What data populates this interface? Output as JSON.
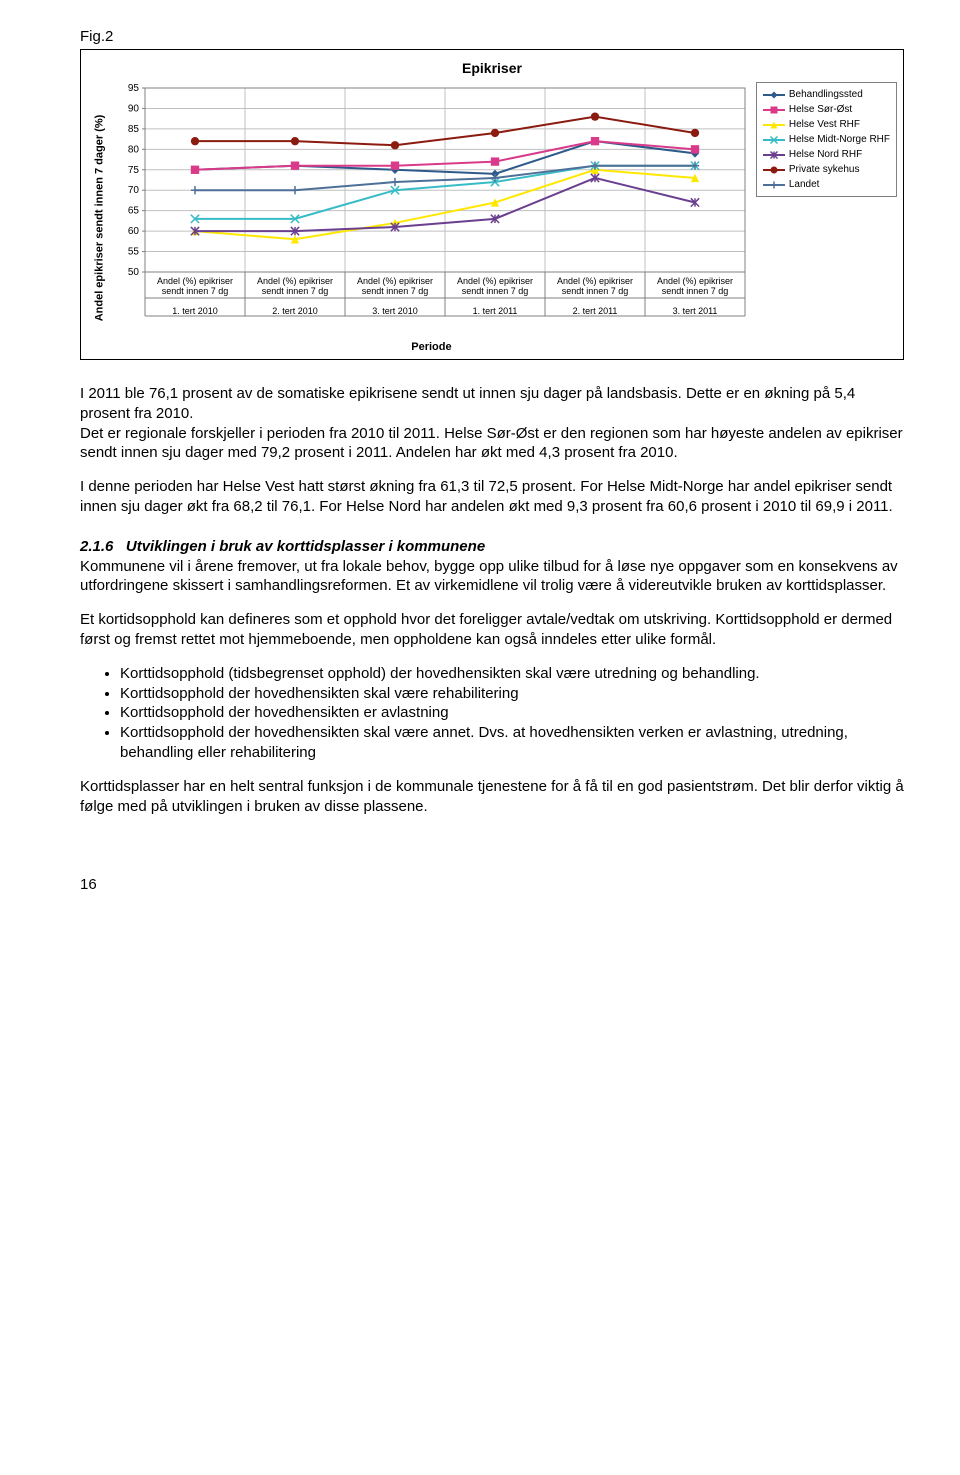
{
  "fig_label": "Fig.2",
  "chart": {
    "title": "Epikriser",
    "yaxis_title": "Andel epikriser sendt innen 7 dager (%)",
    "xaxis_title": "Periode",
    "ylim": [
      50,
      95
    ],
    "ytick_step": 5,
    "background_color": "#ffffff",
    "grid_color": "#c0c0c0",
    "axis_color": "#808080",
    "axis_tick_font_size": 10,
    "x_categories": [
      {
        "line1": "Andel (%) epikriser",
        "line2": "sendt innen 7 dg",
        "period": "1. tert 2010"
      },
      {
        "line1": "Andel (%) epikriser",
        "line2": "sendt innen 7 dg",
        "period": "2. tert 2010"
      },
      {
        "line1": "Andel (%) epikriser",
        "line2": "sendt innen 7 dg",
        "period": "3. tert 2010"
      },
      {
        "line1": "Andel (%) epikriser",
        "line2": "sendt innen 7 dg",
        "period": "1. tert 2011"
      },
      {
        "line1": "Andel (%) epikriser",
        "line2": "sendt innen 7 dg",
        "period": "2. tert 2011"
      },
      {
        "line1": "Andel (%) epikriser",
        "line2": "sendt innen 7 dg",
        "period": "3. tert 2011"
      }
    ],
    "legend": [
      {
        "label": "Behandlingssted",
        "color": "#2e5a8b",
        "marker": "diamond"
      },
      {
        "label": "Helse Sør-Øst",
        "color": "#d93a8a",
        "marker": "square"
      },
      {
        "label": "Helse Vest RHF",
        "color": "#ffe800",
        "marker": "triangle"
      },
      {
        "label": "Helse Midt-Norge RHF",
        "color": "#37bcc7",
        "marker": "x"
      },
      {
        "label": "Helse Nord RHF",
        "color": "#6b3f8f",
        "marker": "star"
      },
      {
        "label": "Private sykehus",
        "color": "#8b1a0f",
        "marker": "circle"
      },
      {
        "label": "Landet",
        "color": "#4e6f98",
        "marker": "plus"
      }
    ],
    "series": [
      {
        "name": "Behandlingssted",
        "color": "#2e5a8b",
        "marker": "diamond",
        "values": [
          75,
          76,
          75,
          74,
          82,
          79
        ]
      },
      {
        "name": "Helse Sør-Øst",
        "color": "#d93a8a",
        "marker": "square",
        "values": [
          75,
          76,
          76,
          77,
          82,
          80
        ]
      },
      {
        "name": "Helse Vest RHF",
        "color": "#ffe800",
        "marker": "triangle",
        "values": [
          60,
          58,
          62,
          67,
          75,
          73
        ]
      },
      {
        "name": "Helse Midt-Norge RHF",
        "color": "#37bcc7",
        "marker": "x",
        "values": [
          63,
          63,
          70,
          72,
          76,
          76
        ]
      },
      {
        "name": "Helse Nord RHF",
        "color": "#6b3f8f",
        "marker": "star",
        "values": [
          60,
          60,
          61,
          63,
          73,
          67
        ]
      },
      {
        "name": "Private sykehus",
        "color": "#8b1a0f",
        "marker": "circle",
        "values": [
          82,
          82,
          81,
          84,
          88,
          84
        ]
      },
      {
        "name": "Landet",
        "color": "#4e6f98",
        "marker": "plus",
        "values": [
          70,
          70,
          72,
          73,
          76,
          76
        ]
      }
    ],
    "line_width": 2,
    "marker_size": 5
  },
  "body": {
    "p1": "I 2011 ble 76,1 prosent av de somatiske epikrisene sendt ut innen sju dager på landsbasis. Dette er en økning på 5,4 prosent fra 2010.",
    "p2": "Det er regionale forskjeller i perioden fra 2010 til 2011. Helse Sør-Øst er den regionen som har høyeste andelen av epikriser sendt innen sju dager med 79,2 prosent i 2011. Andelen har økt med 4,3 prosent fra 2010.",
    "p3": "I denne perioden har Helse Vest hatt størst økning fra 61,3 til 72,5 prosent. For Helse Midt-Norge har andel epikriser sendt innen sju dager økt fra 68,2 til 76,1. For Helse Nord har andelen økt med 9,3 prosent fra 60,6 prosent i 2010 til 69,9 i 2011.",
    "h216_num": "2.1.6",
    "h216_title": "Utviklingen i bruk av korttidsplasser i kommunene",
    "p4": "Kommunene vil i årene fremover, ut fra lokale behov, bygge opp ulike tilbud for å løse nye oppgaver som en konsekvens av utfordringene skissert i samhandlingsreformen. Et av virkemidlene vil trolig være å videreutvikle bruken av korttidsplasser.",
    "p5": "Et kortidsopphold kan defineres som et opphold hvor det foreligger avtale/vedtak om utskriving. Korttidsopphold er dermed først og fremst rettet mot hjemmeboende, men oppholdene kan også inndeles etter ulike formål.",
    "li1": "Korttidsopphold (tidsbegrenset opphold) der hovedhensikten skal være utredning og behandling.",
    "li2": "Korttidsopphold der hovedhensikten skal være rehabilitering",
    "li3": "Korttidsopphold der hovedhensikten er avlastning",
    "li4": "Korttidsopphold der hovedhensikten skal være annet. Dvs. at hovedhensikten verken er avlastning, utredning, behandling eller rehabilitering",
    "p6": "Korttidsplasser har en helt sentral funksjon i de kommunale tjenestene for å få til en god pasientstrøm. Det blir derfor viktig å følge med på utviklingen i bruken av disse plassene."
  },
  "page_number": "16"
}
